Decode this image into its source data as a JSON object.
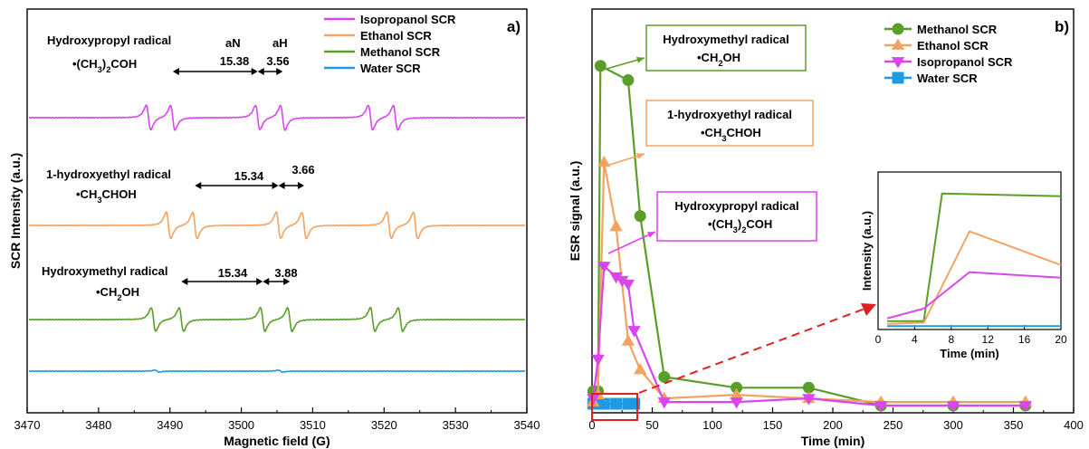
{
  "colors": {
    "isopropanol": "#d946ef",
    "ethanol": "#f4a261",
    "methanol": "#5a9e2a",
    "water": "#1e9be0",
    "arrow": "#e02020",
    "highlight": "#e02020"
  },
  "chart_data": [
    {
      "type": "line",
      "panel_label": "a)",
      "xlabel": "Magnetic field (G)",
      "ylabel": "SCR Intensity (a.u.)",
      "xlim": [
        3470,
        3540
      ],
      "x_ticks": [
        "3470",
        "3480",
        "3490",
        "3500",
        "3510",
        "3520",
        "3530",
        "3540"
      ],
      "legend_position": "top-right",
      "series": [
        {
          "name": "Isopropanol SCR",
          "color_key": "isopropanol"
        },
        {
          "name": "Ethanol SCR",
          "color_key": "ethanol"
        },
        {
          "name": "Methanol SCR",
          "color_key": "methanol"
        },
        {
          "name": "Water SCR",
          "color_key": "water"
        }
      ],
      "spectra": [
        {
          "color_key": "isopropanol",
          "baseline_rank": 1,
          "peaks": [
            3487,
            3490.4,
            3502.3,
            3505.8,
            3518.1,
            3521.6
          ],
          "amplitude": 1.0
        },
        {
          "color_key": "ethanol",
          "baseline_rank": 2,
          "peaks": [
            3489.8,
            3493.5,
            3505.2,
            3508.8,
            3520.7,
            3524.4
          ],
          "amplitude": 1.0
        },
        {
          "color_key": "methanol",
          "baseline_rank": 3,
          "peaks": [
            3487.7,
            3491.6,
            3503,
            3506.8,
            3518.4,
            3522.3
          ],
          "amplitude": 1.0
        },
        {
          "color_key": "water",
          "baseline_rank": 4,
          "peaks": [
            3488.2,
            3505.5
          ],
          "amplitude": 0.07
        }
      ],
      "annotations": {
        "iso_name": "Hydroxypropyl radical",
        "iso_formula": "•(CH3)2COH",
        "iso_aN_label": "aN",
        "iso_aH_label": "aH",
        "iso_aN_value": "15.38",
        "iso_aH_value": "3.56",
        "eth_name": "1-hydroxyethyl radical",
        "eth_formula": "•CH3CHOH",
        "eth_aN_value": "15.34",
        "eth_aH_value": "3.66",
        "meth_name": "Hydroxymethyl radical",
        "meth_formula": "•CH2OH",
        "meth_aN_value": "15.34",
        "meth_aH_value": "3.88"
      }
    },
    {
      "type": "line",
      "panel_label": "b)",
      "xlabel": "Time (min)",
      "ylabel": "ESR signal (a.u.)",
      "xlim": [
        0,
        400
      ],
      "ylim": [
        0,
        1.0
      ],
      "x_ticks": [
        0,
        50,
        100,
        150,
        200,
        250,
        300,
        350,
        400
      ],
      "legend_position": "top-right",
      "series": [
        {
          "name": "Methanol SCR",
          "color_key": "methanol",
          "marker": "circle",
          "x": [
            1,
            5,
            7,
            30,
            40,
            60,
            120,
            180,
            240,
            300,
            360
          ],
          "y": [
            0.04,
            0.04,
            0.95,
            0.91,
            0.53,
            0.08,
            0.05,
            0.05,
            0.0,
            0.0,
            0.0
          ]
        },
        {
          "name": "Ethanol SCR",
          "color_key": "ethanol",
          "marker": "triangle-up",
          "x": [
            1,
            5,
            10,
            20,
            30,
            40,
            60,
            120,
            180,
            240,
            300,
            360
          ],
          "y": [
            0.01,
            0.03,
            0.68,
            0.5,
            0.18,
            0.1,
            0.02,
            0.03,
            0.02,
            0.01,
            0.01,
            0.01
          ]
        },
        {
          "name": "Isopropanol SCR",
          "color_key": "isopropanol",
          "marker": "triangle-down",
          "x": [
            1,
            5,
            10,
            20,
            25,
            30,
            35,
            60,
            120,
            180,
            240,
            300,
            360
          ],
          "y": [
            0.02,
            0.13,
            0.39,
            0.36,
            0.35,
            0.34,
            0.21,
            0.01,
            0.01,
            0.02,
            0.0,
            0.0,
            0.0
          ]
        },
        {
          "name": "Water SCR",
          "color_key": "water",
          "marker": "square",
          "x": [
            1,
            5,
            10,
            20,
            30,
            35
          ],
          "y": [
            0.005,
            0.005,
            0.005,
            0.005,
            0.005,
            0.005
          ]
        }
      ],
      "annotations": {
        "meth_name": "Hydroxymethyl radical",
        "meth_formula": "•CH2OH",
        "eth_name": "1-hydroxyethyl radical",
        "eth_formula": "•CH3CHOH",
        "iso_name": "Hydroxypropyl radical",
        "iso_formula": "•(CH3)2COH"
      },
      "inset": {
        "xlabel": "Time (min)",
        "ylabel": "Intensity (a.u.)",
        "xlim": [
          0,
          20
        ],
        "x_ticks": [
          0,
          4,
          8,
          12,
          16,
          20
        ],
        "series": [
          {
            "color_key": "methanol",
            "x": [
              1,
              5,
              7,
              20
            ],
            "y": [
              0.04,
              0.04,
              0.95,
              0.93
            ]
          },
          {
            "color_key": "ethanol",
            "x": [
              1,
              5,
              10,
              20
            ],
            "y": [
              0.02,
              0.03,
              0.68,
              0.44
            ]
          },
          {
            "color_key": "isopropanol",
            "x": [
              1,
              5,
              10,
              20
            ],
            "y": [
              0.06,
              0.13,
              0.39,
              0.35
            ]
          },
          {
            "color_key": "water",
            "x": [
              1,
              20
            ],
            "y": [
              0.005,
              0.005
            ]
          }
        ]
      }
    }
  ]
}
